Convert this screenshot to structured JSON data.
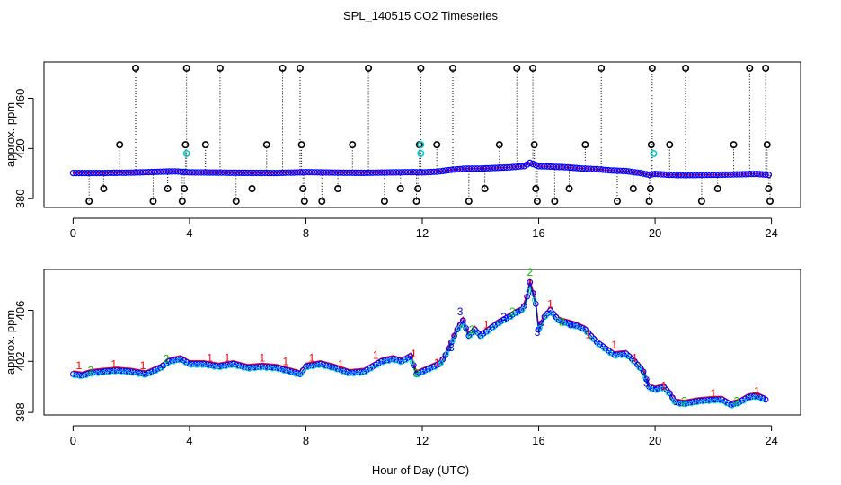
{
  "title": "SPL_140515  CO2 Timeseries",
  "xlabel": "Hour of Day (UTC)",
  "colors": {
    "series1": "#ff0000",
    "series2": "#00c000",
    "series3": "#0000ff",
    "series4": "#00e5ee",
    "outlier": "#000000",
    "flagged": "#00cccc"
  },
  "chart_data": [
    {
      "type": "scatter",
      "panel": "top",
      "ylabel": "approx. ppm",
      "xlim": [
        -1,
        25
      ],
      "ylim": [
        373,
        489
      ],
      "x_ticks": [
        0,
        4,
        8,
        12,
        16,
        20,
        24
      ],
      "y_ticks": [
        380,
        420,
        460
      ],
      "baseline": [
        [
          0.0,
          400.5
        ],
        [
          1.0,
          400.5
        ],
        [
          2.0,
          400.8
        ],
        [
          3.0,
          401.5
        ],
        [
          3.5,
          401.8
        ],
        [
          4.0,
          401.0
        ],
        [
          5.0,
          400.8
        ],
        [
          6.0,
          400.6
        ],
        [
          7.0,
          400.5
        ],
        [
          7.8,
          401.0
        ],
        [
          8.0,
          401.2
        ],
        [
          9.0,
          400.8
        ],
        [
          10.0,
          400.6
        ],
        [
          11.0,
          401.0
        ],
        [
          11.7,
          401.2
        ],
        [
          12.0,
          401.0
        ],
        [
          12.5,
          401.5
        ],
        [
          13.0,
          403.0
        ],
        [
          13.5,
          404.0
        ],
        [
          14.0,
          404.0
        ],
        [
          14.5,
          404.5
        ],
        [
          15.0,
          405.0
        ],
        [
          15.5,
          406.0
        ],
        [
          15.7,
          408.5
        ],
        [
          16.0,
          406.0
        ],
        [
          16.5,
          405.5
        ],
        [
          17.0,
          405.0
        ],
        [
          17.5,
          404.0
        ],
        [
          18.0,
          403.5
        ],
        [
          18.5,
          402.5
        ],
        [
          19.0,
          402.0
        ],
        [
          19.5,
          400.5
        ],
        [
          19.8,
          399.0
        ],
        [
          20.0,
          399.8
        ],
        [
          20.5,
          399.0
        ],
        [
          21.0,
          398.8
        ],
        [
          22.0,
          399.0
        ],
        [
          23.0,
          399.5
        ],
        [
          23.5,
          399.8
        ],
        [
          23.9,
          399.0
        ]
      ],
      "outliers": [
        {
          "x": 0.55,
          "y": 378
        },
        {
          "x": 1.05,
          "y": 388
        },
        {
          "x": 1.6,
          "y": 423
        },
        {
          "x": 2.15,
          "y": 484
        },
        {
          "x": 2.75,
          "y": 378
        },
        {
          "x": 3.25,
          "y": 388
        },
        {
          "x": 3.75,
          "y": 378
        },
        {
          "x": 3.82,
          "y": 388
        },
        {
          "x": 3.86,
          "y": 423
        },
        {
          "x": 3.9,
          "y": 484
        },
        {
          "x": 4.55,
          "y": 423
        },
        {
          "x": 5.05,
          "y": 484
        },
        {
          "x": 5.6,
          "y": 378
        },
        {
          "x": 6.15,
          "y": 388
        },
        {
          "x": 6.65,
          "y": 423
        },
        {
          "x": 7.2,
          "y": 484
        },
        {
          "x": 7.8,
          "y": 484
        },
        {
          "x": 7.85,
          "y": 423
        },
        {
          "x": 7.9,
          "y": 388
        },
        {
          "x": 7.95,
          "y": 378
        },
        {
          "x": 8.55,
          "y": 378
        },
        {
          "x": 9.1,
          "y": 388
        },
        {
          "x": 9.6,
          "y": 423
        },
        {
          "x": 10.15,
          "y": 484
        },
        {
          "x": 10.7,
          "y": 378
        },
        {
          "x": 11.25,
          "y": 388
        },
        {
          "x": 11.8,
          "y": 378
        },
        {
          "x": 11.85,
          "y": 388
        },
        {
          "x": 11.9,
          "y": 423
        },
        {
          "x": 11.95,
          "y": 484
        },
        {
          "x": 12.5,
          "y": 423
        },
        {
          "x": 13.05,
          "y": 484
        },
        {
          "x": 13.6,
          "y": 378
        },
        {
          "x": 14.15,
          "y": 388
        },
        {
          "x": 14.65,
          "y": 423
        },
        {
          "x": 15.25,
          "y": 484
        },
        {
          "x": 15.8,
          "y": 484
        },
        {
          "x": 15.85,
          "y": 423
        },
        {
          "x": 15.9,
          "y": 388
        },
        {
          "x": 15.95,
          "y": 378
        },
        {
          "x": 16.55,
          "y": 378
        },
        {
          "x": 17.05,
          "y": 388
        },
        {
          "x": 17.6,
          "y": 423
        },
        {
          "x": 18.15,
          "y": 484
        },
        {
          "x": 18.7,
          "y": 378
        },
        {
          "x": 19.25,
          "y": 388
        },
        {
          "x": 19.8,
          "y": 378
        },
        {
          "x": 19.84,
          "y": 388
        },
        {
          "x": 19.87,
          "y": 423
        },
        {
          "x": 19.9,
          "y": 484
        },
        {
          "x": 20.5,
          "y": 423
        },
        {
          "x": 21.05,
          "y": 484
        },
        {
          "x": 21.6,
          "y": 378
        },
        {
          "x": 22.15,
          "y": 388
        },
        {
          "x": 22.7,
          "y": 423
        },
        {
          "x": 23.25,
          "y": 484
        },
        {
          "x": 23.8,
          "y": 484
        },
        {
          "x": 23.85,
          "y": 423
        },
        {
          "x": 23.9,
          "y": 388
        },
        {
          "x": 23.95,
          "y": 378
        }
      ],
      "flagged": [
        {
          "x": 3.9,
          "y": 416
        },
        {
          "x": 11.95,
          "y": 423
        },
        {
          "x": 11.95,
          "y": 416
        },
        {
          "x": 19.95,
          "y": 416
        }
      ]
    },
    {
      "type": "scatter",
      "panel": "bottom",
      "ylabel": "approx. ppm",
      "xlim": [
        -1,
        25
      ],
      "ylim": [
        397.8,
        409.2
      ],
      "x_ticks": [
        0,
        4,
        8,
        12,
        16,
        20,
        24
      ],
      "y_ticks": [
        398,
        402,
        406
      ],
      "marker_digits": [
        "1",
        "2",
        "3"
      ],
      "baseline": [
        [
          0.0,
          401.0
        ],
        [
          0.3,
          400.9
        ],
        [
          0.6,
          401.1
        ],
        [
          1.0,
          401.2
        ],
        [
          1.5,
          401.3
        ],
        [
          2.0,
          401.2
        ],
        [
          2.5,
          401.0
        ],
        [
          3.0,
          401.5
        ],
        [
          3.3,
          402.0
        ],
        [
          3.7,
          402.2
        ],
        [
          4.0,
          401.8
        ],
        [
          4.5,
          401.8
        ],
        [
          5.0,
          401.6
        ],
        [
          5.5,
          401.8
        ],
        [
          6.0,
          401.5
        ],
        [
          6.5,
          401.6
        ],
        [
          7.0,
          401.5
        ],
        [
          7.5,
          401.2
        ],
        [
          7.8,
          401.0
        ],
        [
          8.0,
          401.6
        ],
        [
          8.5,
          401.8
        ],
        [
          9.0,
          401.5
        ],
        [
          9.5,
          401.1
        ],
        [
          10.0,
          401.2
        ],
        [
          10.3,
          401.6
        ],
        [
          10.6,
          402.0
        ],
        [
          11.0,
          402.2
        ],
        [
          11.3,
          402.0
        ],
        [
          11.6,
          402.4
        ],
        [
          11.8,
          401.0
        ],
        [
          12.0,
          401.2
        ],
        [
          12.3,
          401.5
        ],
        [
          12.6,
          401.8
        ],
        [
          12.8,
          402.5
        ],
        [
          13.0,
          403.5
        ],
        [
          13.2,
          404.5
        ],
        [
          13.4,
          405.2
        ],
        [
          13.6,
          404.0
        ],
        [
          13.8,
          404.5
        ],
        [
          14.0,
          404.0
        ],
        [
          14.3,
          404.5
        ],
        [
          14.6,
          405.0
        ],
        [
          15.0,
          405.5
        ],
        [
          15.2,
          405.8
        ],
        [
          15.4,
          406.0
        ],
        [
          15.55,
          406.5
        ],
        [
          15.7,
          408.2
        ],
        [
          15.9,
          406.5
        ],
        [
          16.0,
          404.5
        ],
        [
          16.2,
          405.5
        ],
        [
          16.4,
          406.0
        ],
        [
          16.7,
          405.2
        ],
        [
          17.0,
          405.0
        ],
        [
          17.3,
          404.8
        ],
        [
          17.6,
          404.5
        ],
        [
          18.0,
          403.5
        ],
        [
          18.3,
          403.0
        ],
        [
          18.6,
          402.5
        ],
        [
          19.0,
          402.6
        ],
        [
          19.3,
          402.0
        ],
        [
          19.6,
          401.2
        ],
        [
          19.8,
          400.0
        ],
        [
          20.0,
          399.8
        ],
        [
          20.3,
          400.0
        ],
        [
          20.5,
          399.5
        ],
        [
          20.7,
          398.8
        ],
        [
          21.0,
          398.7
        ],
        [
          21.5,
          398.9
        ],
        [
          22.0,
          399.0
        ],
        [
          22.3,
          399.0
        ],
        [
          22.6,
          398.6
        ],
        [
          22.9,
          398.8
        ],
        [
          23.2,
          399.2
        ],
        [
          23.5,
          399.3
        ],
        [
          23.8,
          399.0
        ]
      ],
      "number_positions": [
        {
          "x": 0.2,
          "y": 401.4,
          "d": "1"
        },
        {
          "x": 0.6,
          "y": 401.0,
          "d": "2"
        },
        {
          "x": 1.4,
          "y": 401.5,
          "d": "1"
        },
        {
          "x": 2.4,
          "y": 401.4,
          "d": "1"
        },
        {
          "x": 3.2,
          "y": 401.9,
          "d": "2"
        },
        {
          "x": 4.7,
          "y": 402.0,
          "d": "1"
        },
        {
          "x": 5.3,
          "y": 402.0,
          "d": "1"
        },
        {
          "x": 6.5,
          "y": 402.0,
          "d": "1"
        },
        {
          "x": 7.3,
          "y": 401.7,
          "d": "1"
        },
        {
          "x": 8.2,
          "y": 402.0,
          "d": "1"
        },
        {
          "x": 9.2,
          "y": 401.5,
          "d": "1"
        },
        {
          "x": 10.4,
          "y": 402.2,
          "d": "1"
        },
        {
          "x": 11.7,
          "y": 402.3,
          "d": "1"
        },
        {
          "x": 11.8,
          "y": 400.8,
          "d": "2"
        },
        {
          "x": 12.5,
          "y": 401.6,
          "d": "1"
        },
        {
          "x": 13.0,
          "y": 402.8,
          "d": "3"
        },
        {
          "x": 13.3,
          "y": 405.6,
          "d": "3"
        },
        {
          "x": 13.7,
          "y": 404.2,
          "d": "2"
        },
        {
          "x": 14.2,
          "y": 404.6,
          "d": "1"
        },
        {
          "x": 14.8,
          "y": 405.2,
          "d": "3"
        },
        {
          "x": 15.1,
          "y": 405.6,
          "d": "2"
        },
        {
          "x": 15.7,
          "y": 408.7,
          "d": "2"
        },
        {
          "x": 15.95,
          "y": 404.0,
          "d": "3"
        },
        {
          "x": 16.4,
          "y": 406.2,
          "d": "1"
        },
        {
          "x": 16.8,
          "y": 404.8,
          "d": "2"
        },
        {
          "x": 17.1,
          "y": 404.6,
          "d": "3"
        },
        {
          "x": 17.7,
          "y": 403.8,
          "d": "1"
        },
        {
          "x": 18.6,
          "y": 403.0,
          "d": "1"
        },
        {
          "x": 19.3,
          "y": 402.0,
          "d": "1"
        },
        {
          "x": 19.7,
          "y": 400.0,
          "d": "3"
        },
        {
          "x": 20.3,
          "y": 399.8,
          "d": "1"
        },
        {
          "x": 21.0,
          "y": 398.6,
          "d": "2"
        },
        {
          "x": 22.0,
          "y": 399.2,
          "d": "1"
        },
        {
          "x": 22.8,
          "y": 398.6,
          "d": "2"
        },
        {
          "x": 23.5,
          "y": 399.4,
          "d": "1"
        }
      ]
    }
  ]
}
